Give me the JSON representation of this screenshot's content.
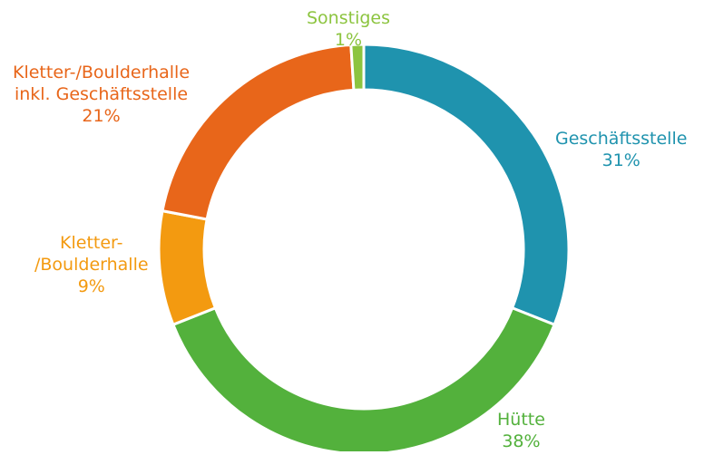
{
  "chart_data": {
    "type": "pie",
    "variant": "donut",
    "start_angle_deg": 0,
    "direction": "clockwise",
    "slices": [
      {
        "label": "Geschäftsstelle",
        "value": 31,
        "value_label": "31%",
        "color": "#1F93AE"
      },
      {
        "label": "Hütte",
        "value": 38,
        "value_label": "38%",
        "color": "#53B13C"
      },
      {
        "label": "Kletter-/Boulderhalle",
        "label_lines": [
          "Kletter-",
          "/Boulderhalle"
        ],
        "value": 9,
        "value_label": "9%",
        "color": "#F39A10"
      },
      {
        "label": "Kletter-/Boulderhalle inkl. Geschäftsstelle",
        "label_lines": [
          "Kletter-/Boulderhalle",
          "inkl. Geschäftsstelle"
        ],
        "value": 21,
        "value_label": "21%",
        "color": "#E8661A"
      },
      {
        "label": "Sonstiges",
        "value": 1,
        "value_label": "1%",
        "color": "#8CC43F"
      }
    ],
    "legend": "none"
  }
}
